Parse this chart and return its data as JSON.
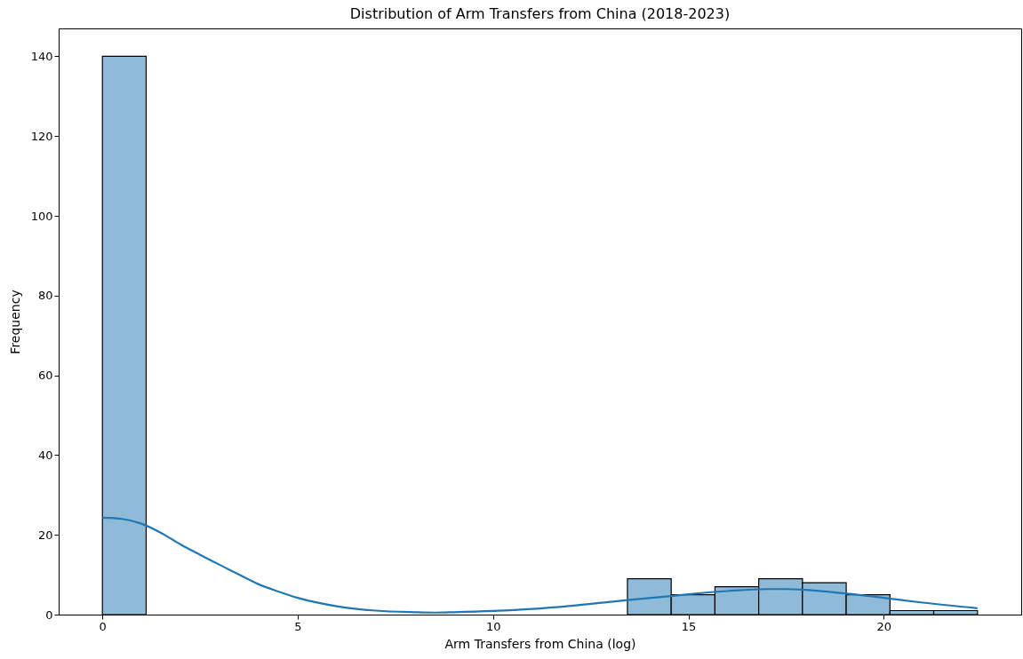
{
  "chart_data": {
    "type": "histogram",
    "title": "Distribution of Arm Transfers from China (2018-2023)",
    "xlabel": "Arm Transfers from China (log)",
    "ylabel": "Frequency",
    "bins": [
      0,
      1.12,
      2.24,
      3.36,
      4.48,
      5.6,
      6.72,
      7.84,
      8.96,
      10.08,
      11.2,
      12.32,
      13.44,
      14.56,
      15.68,
      16.8,
      17.92,
      19.04,
      20.16,
      21.28,
      22.4
    ],
    "values": [
      140,
      0,
      0,
      0,
      0,
      0,
      0,
      0,
      0,
      0,
      0,
      0,
      9,
      5,
      7,
      9,
      8,
      5,
      1,
      1
    ],
    "color": "#8fbbd9",
    "series": [
      {
        "type": "line",
        "color": "#1f77b4",
        "x": [
          0,
          0.5,
          1,
          1.5,
          2,
          2.5,
          3,
          3.5,
          4,
          4.5,
          5,
          6,
          7,
          8,
          8.5,
          9,
          10,
          11,
          12,
          13,
          13.5,
          14.5,
          15,
          16,
          17,
          17.5,
          18,
          19,
          20,
          21,
          22.4
        ],
        "values": [
          24.3,
          24,
          22.8,
          20.5,
          17.6,
          15,
          12.5,
          10,
          7.6,
          5.8,
          4.2,
          2.1,
          1.0,
          0.6,
          0.5,
          0.6,
          0.9,
          1.4,
          2.2,
          3.2,
          3.7,
          4.6,
          5.1,
          5.9,
          6.4,
          6.4,
          6.2,
          5.3,
          4.2,
          3.0,
          1.6
        ]
      }
    ],
    "xlim": [
      -1.12,
      23.52
    ],
    "xticks": [
      0,
      5,
      10,
      15,
      20
    ],
    "ylim": [
      0,
      147
    ],
    "yticks": [
      0,
      20,
      40,
      60,
      80,
      100,
      120,
      140
    ],
    "grid": false
  }
}
